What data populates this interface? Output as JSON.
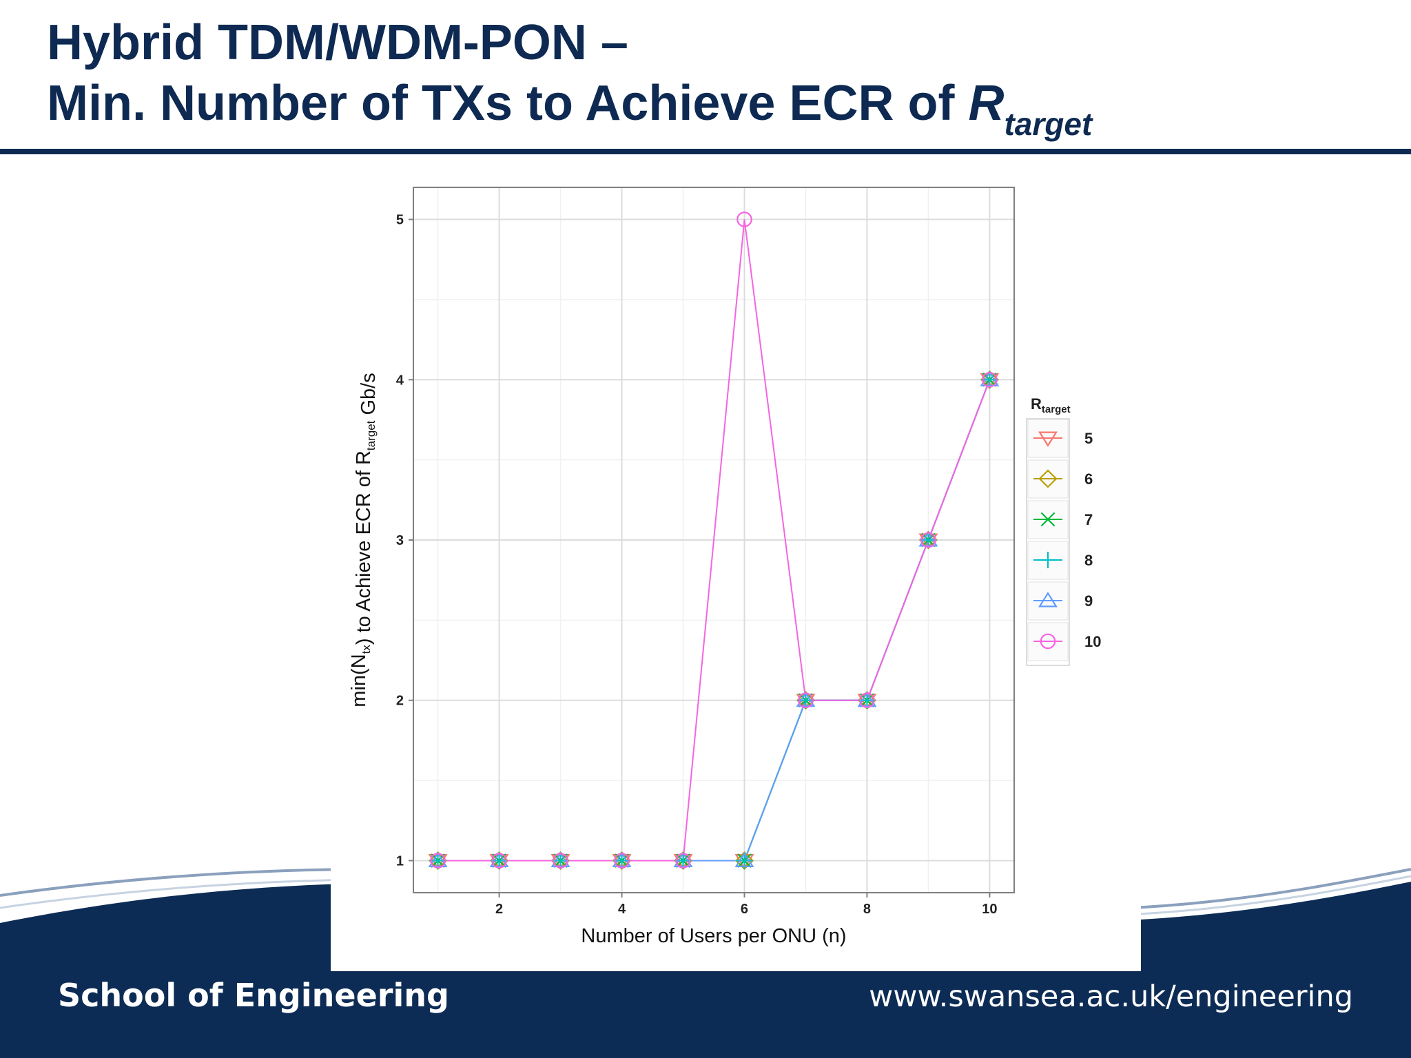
{
  "slide": {
    "title_line1": "Hybrid TDM/WDM-PON –",
    "title_line2": "Min. Number of TXs to Achieve ECR of ",
    "title_r": "R",
    "title_r_sub": "target",
    "footer_left": "School of Engineering",
    "footer_right": "www.swansea.ac.uk/engineering",
    "colors": {
      "navy": "#0e2a52",
      "footer": "#0d2c55"
    }
  },
  "chart_data": {
    "type": "line",
    "xlabel": "Number of Users per ONU (n)",
    "ylabel_prefix": "min(N",
    "ylabel_sub1": "tx",
    "ylabel_mid": ") to Achieve ECR of R",
    "ylabel_sub2": "target",
    "ylabel_suffix": " Gb/s",
    "xlim": [
      0.6,
      10.4
    ],
    "ylim": [
      0.8,
      5.2
    ],
    "xticks": [
      2,
      4,
      6,
      8,
      10
    ],
    "yticks": [
      1,
      2,
      3,
      4,
      5
    ],
    "grid": true,
    "legend_title": "R",
    "legend_title_sub": "target",
    "legend_position": "right",
    "x": [
      1,
      2,
      3,
      4,
      5,
      6,
      7,
      8,
      9,
      10
    ],
    "series": [
      {
        "name": "5",
        "marker": "triangle-down",
        "color": "#f8766d",
        "values": [
          1,
          1,
          1,
          1,
          1,
          1,
          2,
          2,
          3,
          4
        ]
      },
      {
        "name": "6",
        "marker": "diamond",
        "color": "#b79f00",
        "values": [
          1,
          1,
          1,
          1,
          1,
          1,
          2,
          2,
          3,
          4
        ]
      },
      {
        "name": "7",
        "marker": "x",
        "color": "#00ba38",
        "values": [
          1,
          1,
          1,
          1,
          1,
          1,
          2,
          2,
          3,
          4
        ]
      },
      {
        "name": "8",
        "marker": "plus",
        "color": "#00bfc4",
        "values": [
          1,
          1,
          1,
          1,
          1,
          1,
          2,
          2,
          3,
          4
        ]
      },
      {
        "name": "9",
        "marker": "triangle-up",
        "color": "#619cff",
        "values": [
          1,
          1,
          1,
          1,
          1,
          1,
          2,
          2,
          3,
          4
        ]
      },
      {
        "name": "10",
        "marker": "circle",
        "color": "#f564e3",
        "values": [
          1,
          1,
          1,
          1,
          1,
          5,
          2,
          2,
          3,
          4
        ]
      }
    ]
  }
}
